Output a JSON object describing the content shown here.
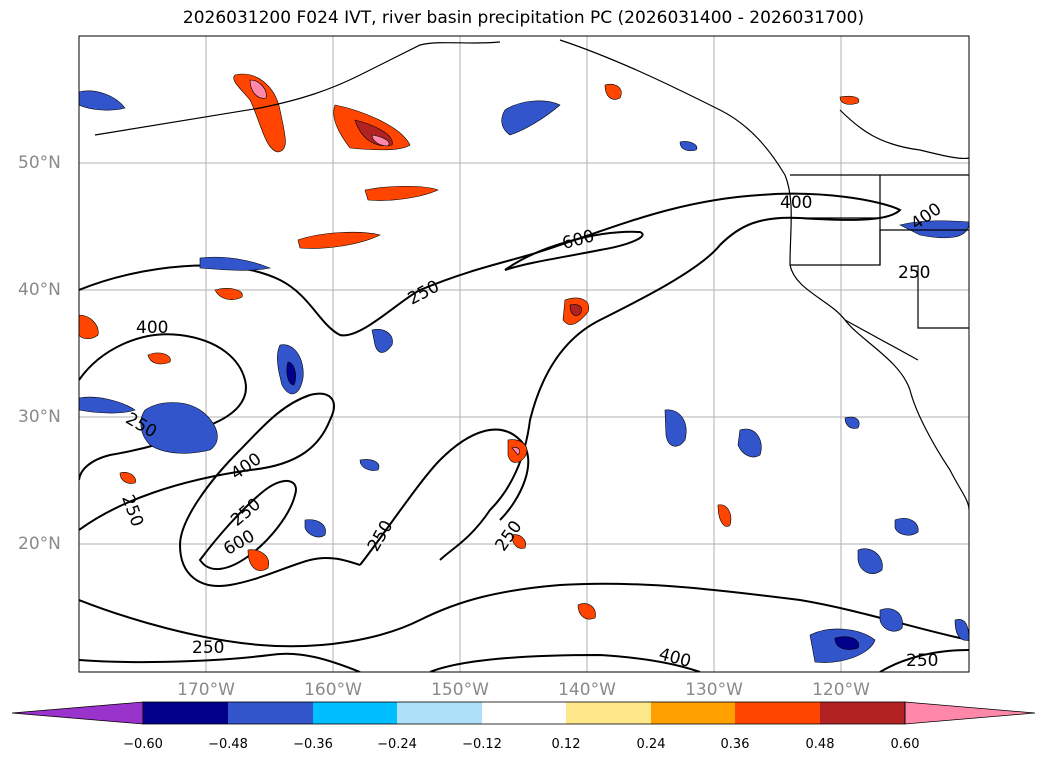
{
  "title": "2026031200 F024 IVT, river basin precipitation PC (2026031400 - 2026031700)",
  "map": {
    "lon_labels": [
      "170°W",
      "160°W",
      "150°W",
      "140°W",
      "130°W",
      "120°W"
    ],
    "lat_labels": [
      "50°N",
      "40°N",
      "30°N",
      "20°N"
    ],
    "contour_labels": [
      "250",
      "400",
      "600",
      "250",
      "400",
      "600",
      "250",
      "250",
      "400",
      "400",
      "250",
      "250",
      "250",
      "400",
      "250",
      "250"
    ]
  },
  "colorbar": {
    "tick_labels": [
      "−0.60",
      "−0.48",
      "−0.36",
      "−0.24",
      "−0.12",
      "0.12",
      "0.24",
      "0.36",
      "0.48",
      "0.60"
    ],
    "colors": [
      "#9933cc",
      "#00008b",
      "#3355cc",
      "#00bfff",
      "#aee0fa",
      "#ffffff",
      "#ffe88a",
      "#ff9f00",
      "#ff4500",
      "#b22222",
      "#ff88aa"
    ]
  }
}
